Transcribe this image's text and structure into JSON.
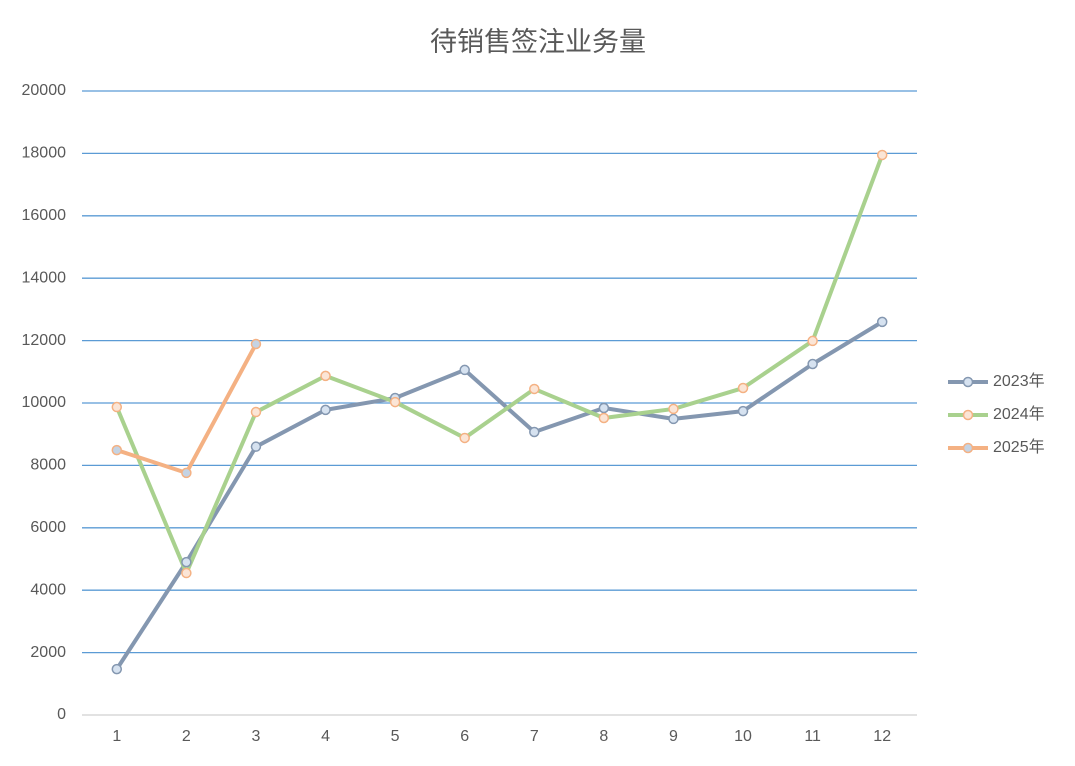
{
  "chart_data": {
    "type": "line",
    "title": "待销售签注业务量",
    "categories": [
      "1",
      "2",
      "3",
      "4",
      "5",
      "6",
      "7",
      "8",
      "9",
      "10",
      "11",
      "12"
    ],
    "series": [
      {
        "name": "2023年",
        "color": "#8497b0",
        "marker_fill": "#d6e2f0",
        "marker_edge": "#8497b0",
        "values": [
          1470,
          4900,
          8600,
          9780,
          10160,
          11060,
          9070,
          9840,
          9490,
          9740,
          11250,
          12600
        ]
      },
      {
        "name": "2024年",
        "color": "#a9d18e",
        "marker_fill": "#fbe5d6",
        "marker_edge": "#f4b183",
        "values": [
          9870,
          4550,
          9710,
          10870,
          10030,
          8880,
          10450,
          9520,
          9810,
          10480,
          11990,
          17950
        ]
      },
      {
        "name": "2025年",
        "color": "#f4b183",
        "marker_fill": "#c5d3e3",
        "marker_edge": "#f4b183",
        "values": [
          8490,
          7760,
          11890,
          null,
          null,
          null,
          null,
          null,
          null,
          null,
          null,
          null
        ]
      }
    ],
    "ylim": [
      0,
      20000
    ],
    "yticks": [
      0,
      2000,
      4000,
      6000,
      8000,
      10000,
      12000,
      14000,
      16000,
      18000,
      20000
    ],
    "grid": true,
    "legend": "right"
  }
}
